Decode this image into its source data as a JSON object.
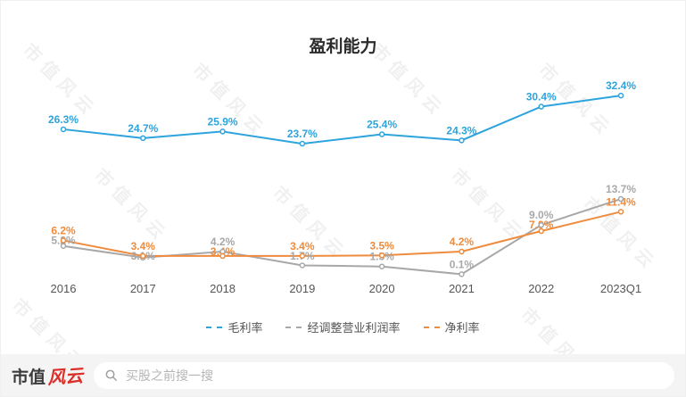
{
  "title": "盈利能力",
  "watermark": "市值风云",
  "footer": {
    "logo_text_1": "市值",
    "logo_text_2": "风云",
    "search_placeholder": "买股之前搜一搜"
  },
  "legend": {
    "items": [
      "毛利率",
      "经调整营业利润率",
      "净利率"
    ]
  },
  "chart_data": {
    "type": "line",
    "title": "盈利能力",
    "categories": [
      "2016",
      "2017",
      "2018",
      "2019",
      "2020",
      "2021",
      "2022",
      "2023Q1"
    ],
    "series": [
      {
        "name": "毛利率",
        "color": "#2da4dd",
        "values": [
          26.3,
          24.7,
          25.9,
          23.7,
          25.4,
          24.3,
          30.4,
          32.4
        ]
      },
      {
        "name": "经调整营业利润率",
        "color": "#a8a8a8",
        "values": [
          5.2,
          3.1,
          4.2,
          1.7,
          1.5,
          0.1,
          9.0,
          13.7
        ]
      },
      {
        "name": "净利率",
        "color": "#ef8b3c",
        "values": [
          6.2,
          3.4,
          3.4,
          3.4,
          3.5,
          4.2,
          7.9,
          11.4
        ]
      }
    ],
    "value_suffix": "%",
    "ylim": [
      0,
      35
    ],
    "grid": false,
    "legend_position": "bottom",
    "axis_label_color": "#555555"
  }
}
